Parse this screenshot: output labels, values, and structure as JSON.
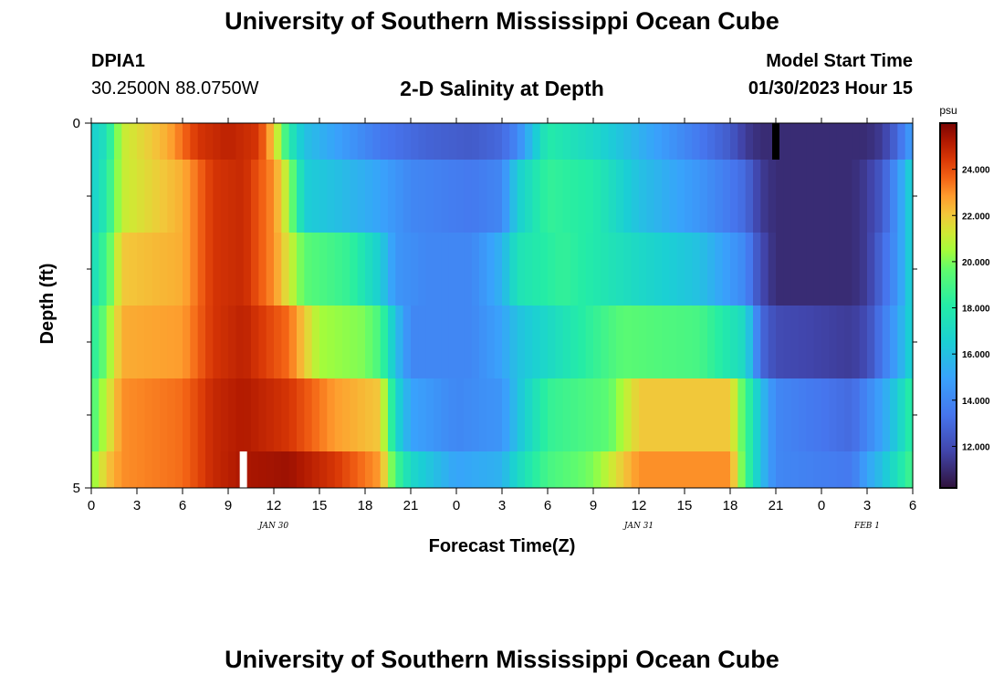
{
  "page": {
    "title_top": "University of Southern Mississippi Ocean Cube",
    "title_bottom": "University of Southern Mississippi Ocean Cube",
    "station_id": "DPIA1",
    "station_coords": "30.2500N  88.0750W",
    "plot_title": "2-D Salinity at Depth",
    "model_label": "Model Start Time",
    "model_time": "01/30/2023 Hour 15"
  },
  "chart_data": {
    "type": "heatmap",
    "title": "2-D Salinity at Depth",
    "xlabel": "Forecast Time(Z)",
    "ylabel": "Depth (ft)",
    "colorbar_unit": "psu",
    "x_tick_labels": [
      "0",
      "3",
      "6",
      "9",
      "12",
      "15",
      "18",
      "21",
      "0",
      "3",
      "6",
      "9",
      "12",
      "15",
      "18",
      "21",
      "0",
      "3",
      "6"
    ],
    "x_date_labels": [
      {
        "label": "JAN 30",
        "hour": 12
      },
      {
        "label": "JAN 31",
        "hour": 36
      },
      {
        "label": "FEB 1",
        "hour": 51
      }
    ],
    "x_range_hours": [
      0,
      54
    ],
    "y_range_ft": [
      0,
      5
    ],
    "y_tick_labels": [
      {
        "value": 0,
        "label": "0"
      },
      {
        "value": 5,
        "label": "5"
      }
    ],
    "y_minor_ticks": [
      1,
      2,
      3,
      4
    ],
    "colorbar": {
      "min": 10.2,
      "max": 26,
      "ticks": [
        "12.000",
        "14.000",
        "16.000",
        "18.000",
        "20.000",
        "22.000",
        "24.000"
      ],
      "tick_values": [
        12,
        14,
        16,
        18,
        20,
        22,
        24
      ]
    },
    "layers": [
      {
        "depth": [
          0,
          0.5
        ],
        "knots": [
          [
            0,
            16.5
          ],
          [
            1,
            17.5
          ],
          [
            2,
            21
          ],
          [
            5,
            22.5
          ],
          [
            7,
            24.5
          ],
          [
            9,
            25
          ],
          [
            11,
            24.5
          ],
          [
            12,
            22
          ],
          [
            13,
            18
          ],
          [
            14,
            16
          ],
          [
            16,
            15
          ],
          [
            19,
            13.5
          ],
          [
            22,
            12.8
          ],
          [
            25,
            12.5
          ],
          [
            27,
            13
          ],
          [
            28,
            14
          ],
          [
            29,
            16
          ],
          [
            30,
            18
          ],
          [
            33,
            17
          ],
          [
            37,
            15
          ],
          [
            40,
            13.5
          ],
          [
            42,
            12.5
          ],
          [
            43,
            11.5
          ],
          [
            44,
            11
          ],
          [
            48,
            11
          ],
          [
            51,
            11
          ],
          [
            52,
            11.5
          ],
          [
            53,
            13
          ],
          [
            54,
            15
          ]
        ]
      },
      {
        "depth": [
          0.5,
          1.5
        ],
        "knots": [
          [
            0,
            16.5
          ],
          [
            1,
            18
          ],
          [
            2,
            21
          ],
          [
            6,
            22.5
          ],
          [
            8,
            24.5
          ],
          [
            10,
            24.8
          ],
          [
            12,
            23
          ],
          [
            13,
            20.5
          ],
          [
            14,
            16.5
          ],
          [
            16,
            16
          ],
          [
            19,
            15
          ],
          [
            21,
            14
          ],
          [
            25,
            13.5
          ],
          [
            27,
            14
          ],
          [
            28,
            16.5
          ],
          [
            30,
            18.5
          ],
          [
            33,
            18
          ],
          [
            36,
            16
          ],
          [
            40,
            14.5
          ],
          [
            43,
            13
          ],
          [
            44,
            11.5
          ],
          [
            45,
            11
          ],
          [
            50,
            11
          ],
          [
            51,
            11.5
          ],
          [
            52,
            12.5
          ],
          [
            53,
            14.5
          ],
          [
            54,
            17
          ]
        ]
      },
      {
        "depth": [
          1.5,
          2.5
        ],
        "knots": [
          [
            0,
            17
          ],
          [
            1,
            19
          ],
          [
            2,
            22
          ],
          [
            6,
            22.5
          ],
          [
            8,
            24.5
          ],
          [
            10,
            24.8
          ],
          [
            12,
            23
          ],
          [
            14,
            19.5
          ],
          [
            17,
            18.5
          ],
          [
            19,
            16.5
          ],
          [
            20,
            14.5
          ],
          [
            22,
            14
          ],
          [
            25,
            14
          ],
          [
            27,
            15.5
          ],
          [
            28,
            17.5
          ],
          [
            31,
            18.5
          ],
          [
            36,
            17
          ],
          [
            40,
            16
          ],
          [
            43,
            14
          ],
          [
            44,
            12
          ],
          [
            45,
            11
          ],
          [
            50,
            11
          ],
          [
            51,
            11.5
          ],
          [
            52,
            13
          ],
          [
            53,
            14.5
          ],
          [
            54,
            17
          ]
        ]
      },
      {
        "depth": [
          2.5,
          3.5
        ],
        "knots": [
          [
            0,
            18
          ],
          [
            1,
            20
          ],
          [
            2,
            22.5
          ],
          [
            6,
            22.8
          ],
          [
            8,
            24.5
          ],
          [
            10,
            25
          ],
          [
            13,
            23.5
          ],
          [
            15,
            20.5
          ],
          [
            18,
            20
          ],
          [
            19,
            19
          ],
          [
            20,
            16
          ],
          [
            21,
            14
          ],
          [
            25,
            14
          ],
          [
            27,
            15
          ],
          [
            28,
            16
          ],
          [
            30,
            17
          ],
          [
            35,
            19.5
          ],
          [
            40,
            19
          ],
          [
            43,
            17
          ],
          [
            44,
            13
          ],
          [
            45,
            12
          ],
          [
            50,
            11.5
          ],
          [
            51,
            12
          ],
          [
            52,
            13.5
          ],
          [
            53,
            15
          ],
          [
            54,
            17
          ]
        ]
      },
      {
        "depth": [
          3.5,
          4.5
        ],
        "knots": [
          [
            0,
            19
          ],
          [
            1,
            21
          ],
          [
            2,
            23
          ],
          [
            6,
            23.5
          ],
          [
            8,
            24.8
          ],
          [
            10,
            25.2
          ],
          [
            13,
            24.5
          ],
          [
            16,
            22.8
          ],
          [
            19,
            22
          ],
          [
            20,
            17
          ],
          [
            21,
            15
          ],
          [
            24,
            14
          ],
          [
            27,
            14.5
          ],
          [
            28,
            16
          ],
          [
            30,
            18.5
          ],
          [
            34,
            19.5
          ],
          [
            36,
            22
          ],
          [
            42,
            22
          ],
          [
            43,
            19
          ],
          [
            44,
            16
          ],
          [
            45,
            14
          ],
          [
            50,
            13
          ],
          [
            51,
            14
          ],
          [
            52,
            15
          ],
          [
            53,
            16.5
          ],
          [
            54,
            18.5
          ]
        ]
      },
      {
        "depth": [
          4.5,
          5
        ],
        "knots": [
          [
            0,
            20
          ],
          [
            1,
            22
          ],
          [
            2,
            23
          ],
          [
            6,
            23.5
          ],
          [
            8,
            24.8
          ],
          [
            10,
            25.3
          ],
          [
            13,
            25.5
          ],
          [
            16,
            24.5
          ],
          [
            19,
            22.8
          ],
          [
            20,
            19
          ],
          [
            21,
            17
          ],
          [
            24,
            15
          ],
          [
            27,
            15.5
          ],
          [
            28,
            17
          ],
          [
            30,
            19
          ],
          [
            33,
            20
          ],
          [
            36,
            23
          ],
          [
            42,
            23
          ],
          [
            43,
            19
          ],
          [
            44,
            16
          ],
          [
            45,
            14
          ],
          [
            50,
            13.5
          ],
          [
            51,
            15
          ],
          [
            52,
            16
          ],
          [
            53,
            17.5
          ],
          [
            54,
            19
          ]
        ]
      }
    ],
    "markers": [
      {
        "hour": 10,
        "depth": [
          4.5,
          5
        ],
        "color": "#ffffff"
      },
      {
        "hour": 45,
        "depth": [
          0,
          0.5
        ],
        "color": "#000000"
      }
    ]
  }
}
